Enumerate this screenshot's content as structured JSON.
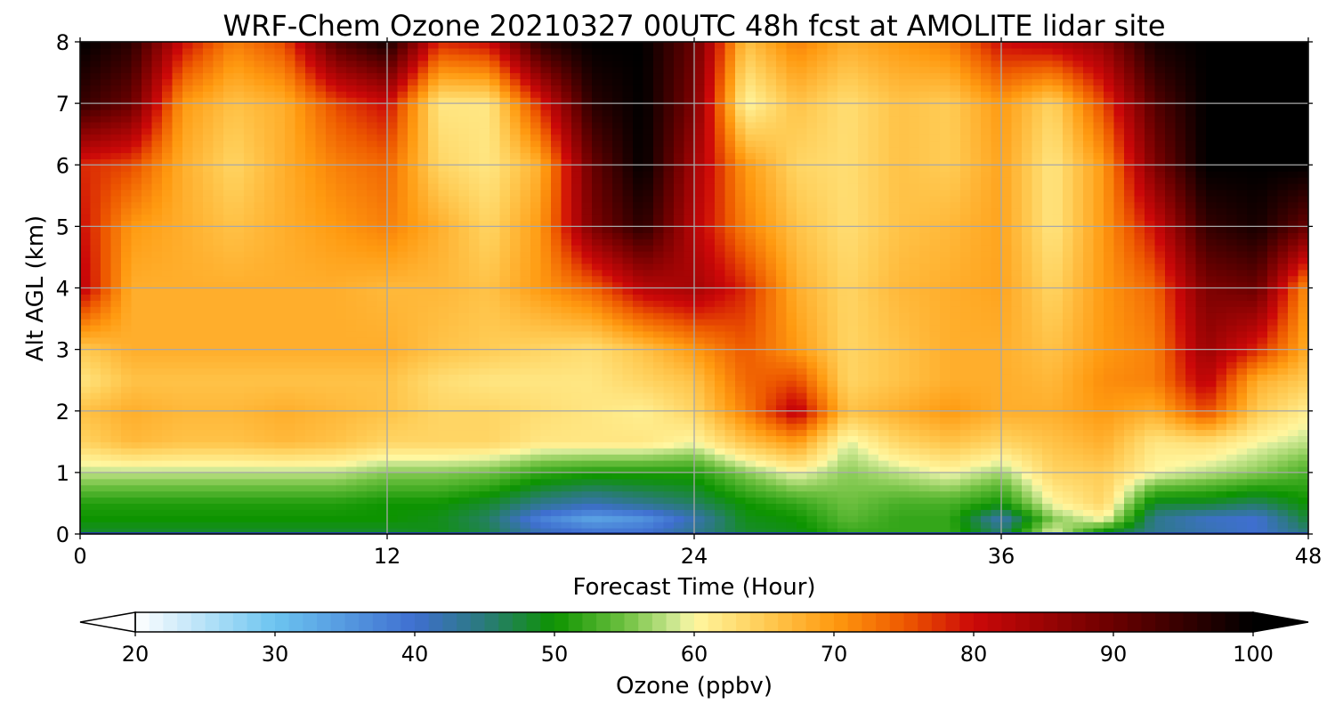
{
  "chart_data": {
    "type": "heatmap",
    "title": "WRF-Chem Ozone  20210327 00UTC 48h fcst at AMOLITE lidar site",
    "xlabel": "Forecast Time (Hour)",
    "ylabel": "Alt AGL (km)",
    "xlim": [
      0,
      48
    ],
    "ylim": [
      0,
      8
    ],
    "x_ticks": [
      "0",
      "12",
      "24",
      "36",
      "48"
    ],
    "y_ticks": [
      "0",
      "1",
      "2",
      "3",
      "4",
      "5",
      "6",
      "7",
      "8"
    ],
    "grid": true,
    "colorbar": {
      "label": "Ozone  (ppbv)",
      "range": [
        20,
        100
      ],
      "ticks": [
        "20",
        "30",
        "40",
        "50",
        "60",
        "70",
        "80",
        "90",
        "100"
      ],
      "extend": "both",
      "color_stops": [
        {
          "value": 20,
          "color": "#ffffff"
        },
        {
          "value": 30,
          "color": "#6cc4f0"
        },
        {
          "value": 40,
          "color": "#3f6fd0"
        },
        {
          "value": 45,
          "color": "#2a7a7a"
        },
        {
          "value": 50,
          "color": "#0d9400"
        },
        {
          "value": 55,
          "color": "#6ec040"
        },
        {
          "value": 59,
          "color": "#d8ec9a"
        },
        {
          "value": 60,
          "color": "#fff7a0"
        },
        {
          "value": 65,
          "color": "#ffcc55"
        },
        {
          "value": 70,
          "color": "#ff9a10"
        },
        {
          "value": 75,
          "color": "#ee5a00"
        },
        {
          "value": 80,
          "color": "#cc0808"
        },
        {
          "value": 90,
          "color": "#6a0000"
        },
        {
          "value": 100,
          "color": "#000000"
        }
      ]
    },
    "grid_x": [
      0,
      2,
      4,
      6,
      8,
      10,
      12,
      14,
      16,
      18,
      20,
      22,
      24,
      26,
      28,
      30,
      32,
      34,
      36,
      38,
      40,
      42,
      44,
      46,
      48
    ],
    "grid_y": [
      0,
      0.25,
      0.5,
      1,
      1.5,
      2,
      2.5,
      3,
      4,
      5,
      6,
      7,
      8
    ],
    "values": [
      [
        48,
        48,
        48,
        48,
        48,
        48,
        48,
        49,
        47,
        42,
        40,
        40,
        44,
        48,
        49,
        52,
        52,
        52,
        46,
        60,
        48,
        44,
        42,
        40,
        45
      ],
      [
        50,
        50,
        50,
        50,
        50,
        50,
        50,
        49,
        46,
        38,
        34,
        36,
        42,
        49,
        50,
        54,
        52,
        52,
        42,
        56,
        60,
        44,
        41,
        40,
        48
      ],
      [
        51,
        51,
        51,
        51,
        51,
        51,
        50,
        50,
        48,
        44,
        42,
        44,
        46,
        50,
        52,
        55,
        53,
        53,
        50,
        60,
        64,
        48,
        48,
        46,
        50
      ],
      [
        58,
        58,
        58,
        58,
        58,
        58,
        56,
        56,
        55,
        52,
        51,
        51,
        51,
        56,
        60,
        56,
        58,
        60,
        57,
        64,
        65,
        60,
        58,
        56,
        53
      ],
      [
        64,
        67,
        66,
        66,
        67,
        66,
        64,
        64,
        64,
        62,
        62,
        62,
        60,
        66,
        70,
        59,
        64,
        66,
        64,
        66,
        68,
        62,
        63,
        60,
        58
      ],
      [
        66,
        68,
        67,
        67,
        68,
        67,
        66,
        64,
        64,
        63,
        62,
        61,
        64,
        72,
        82,
        66,
        68,
        70,
        68,
        68,
        70,
        68,
        76,
        65,
        61
      ],
      [
        62,
        66,
        66,
        66,
        66,
        66,
        66,
        63,
        62,
        62,
        62,
        64,
        66,
        74,
        76,
        64,
        66,
        68,
        68,
        67,
        71,
        72,
        82,
        68,
        65
      ],
      [
        65,
        68,
        68,
        68,
        68,
        68,
        68,
        66,
        65,
        64,
        63,
        66,
        70,
        75,
        70,
        64,
        66,
        68,
        68,
        66,
        70,
        72,
        85,
        78,
        68
      ],
      [
        82,
        68,
        68,
        68,
        68,
        68,
        67,
        67,
        66,
        70,
        74,
        82,
        84,
        78,
        68,
        64,
        67,
        68,
        69,
        64,
        70,
        74,
        88,
        90,
        70
      ],
      [
        80,
        70,
        68,
        66,
        68,
        70,
        72,
        68,
        64,
        70,
        88,
        96,
        82,
        72,
        66,
        63,
        66,
        67,
        69,
        62,
        70,
        80,
        95,
        98,
        90
      ],
      [
        78,
        76,
        68,
        64,
        68,
        72,
        74,
        64,
        62,
        68,
        90,
        100,
        84,
        70,
        64,
        63,
        66,
        65,
        69,
        62,
        70,
        88,
        100,
        100,
        100
      ],
      [
        95,
        90,
        70,
        66,
        68,
        76,
        80,
        62,
        62,
        78,
        96,
        100,
        88,
        60,
        66,
        63,
        66,
        65,
        70,
        64,
        76,
        92,
        100,
        100,
        100
      ],
      [
        100,
        96,
        80,
        72,
        76,
        92,
        98,
        78,
        80,
        96,
        100,
        100,
        90,
        66,
        72,
        68,
        70,
        72,
        80,
        82,
        86,
        98,
        100,
        100,
        100
      ]
    ]
  }
}
